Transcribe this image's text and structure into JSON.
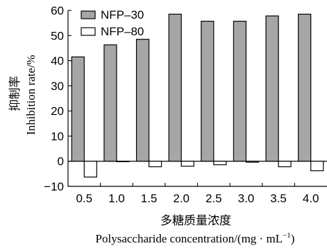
{
  "chart_data": {
    "type": "bar",
    "categories": [
      "0.5",
      "1.0",
      "1.5",
      "2.0",
      "2.5",
      "3.0",
      "3.5",
      "4.0"
    ],
    "series": [
      {
        "name": "NFP–30",
        "color": "#a6a6a6",
        "values": [
          41.5,
          46.3,
          48.5,
          58.5,
          55.7,
          55.7,
          57.8,
          58.5
        ]
      },
      {
        "name": "NFP–80",
        "color": "#ffffff",
        "values": [
          -6.3,
          -0.2,
          -2.2,
          -2.0,
          -1.4,
          -0.4,
          -2.2,
          -3.8
        ]
      }
    ],
    "yticks": [
      -10,
      0,
      10,
      20,
      30,
      40,
      50,
      60
    ],
    "ytick_labels": [
      "−10",
      "0",
      "10",
      "20",
      "30",
      "40",
      "50",
      "60"
    ],
    "ylim": [
      -10,
      60
    ],
    "ylabel_cn": "抑制率",
    "ylabel_en": "Inhibition rate/%",
    "xlabel_cn": "多糖质量浓度",
    "xlabel_en": "Polysaccharide concentration/(mg · mL",
    "xlabel_en_sup": "−1",
    "xlabel_en_close": ")",
    "legend_position": "top-left",
    "grid": false
  }
}
